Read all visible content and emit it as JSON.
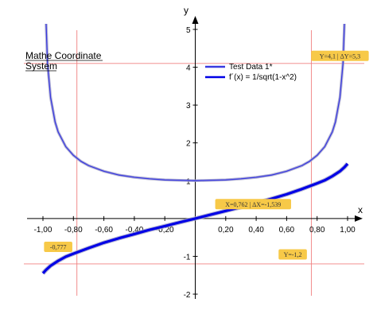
{
  "chart_data": {
    "type": "line",
    "title_lines": [
      "Mathe Coordinate",
      "System"
    ],
    "xlabel": "x",
    "ylabel": "y",
    "xlim": [
      -1.0,
      1.0
    ],
    "ylim": [
      -2,
      5
    ],
    "x_ticks": [
      -1.0,
      -0.8,
      -0.6,
      -0.4,
      -0.2,
      0.2,
      0.4,
      0.6,
      0.8,
      1.0
    ],
    "x_tick_labels": [
      "-1,00",
      "-0,80",
      "-0,60",
      "-0,40",
      "-0,20",
      "0,20",
      "0,40",
      "0,60",
      "0,80",
      "1,00"
    ],
    "y_ticks": [
      -2,
      -1,
      1,
      2,
      3,
      4,
      5
    ],
    "y_tick_labels": [
      "-2",
      "-1",
      "1",
      "2",
      "3",
      "4",
      "5"
    ],
    "grid": false,
    "legend_position": "top-right",
    "series": [
      {
        "name": "Test Data 1*",
        "color": "#3a3ae0",
        "x": [
          -0.985,
          -0.97,
          -0.95,
          -0.92,
          -0.9,
          -0.85,
          -0.8,
          -0.75,
          -0.7,
          -0.6,
          -0.5,
          -0.4,
          -0.3,
          -0.2,
          -0.1,
          0.0,
          0.1,
          0.2,
          0.3,
          0.4,
          0.5,
          0.6,
          0.7,
          0.75,
          0.8,
          0.85,
          0.9,
          0.92,
          0.95,
          0.97,
          0.985
        ],
        "y": [
          5.8,
          4.11,
          3.2,
          2.55,
          2.29,
          1.9,
          1.67,
          1.51,
          1.4,
          1.25,
          1.15,
          1.09,
          1.05,
          1.02,
          1.01,
          1.0,
          1.01,
          1.02,
          1.05,
          1.09,
          1.15,
          1.25,
          1.4,
          1.51,
          1.67,
          1.9,
          2.29,
          2.55,
          3.2,
          4.11,
          5.8
        ]
      },
      {
        "name": "f´(x) = 1/sqrt(1-x^2)",
        "color": "#0000e6",
        "x": [
          -1.0,
          -0.98,
          -0.95,
          -0.9,
          -0.85,
          -0.8,
          -0.7,
          -0.6,
          -0.5,
          -0.4,
          -0.3,
          -0.2,
          -0.1,
          0.0,
          0.1,
          0.2,
          0.3,
          0.4,
          0.5,
          0.6,
          0.7,
          0.8,
          0.85,
          0.9,
          0.95,
          0.98,
          1.0
        ],
        "y": [
          -1.45,
          -1.36,
          -1.25,
          -1.12,
          -1.01,
          -0.93,
          -0.78,
          -0.64,
          -0.52,
          -0.41,
          -0.3,
          -0.2,
          -0.1,
          0.0,
          0.1,
          0.2,
          0.3,
          0.41,
          0.52,
          0.64,
          0.78,
          0.93,
          1.01,
          1.12,
          1.25,
          1.36,
          1.45
        ]
      }
    ],
    "crosshairs": {
      "x": [
        -0.777,
        0.762
      ],
      "y": [
        4.1,
        -1.2
      ]
    },
    "annotations": [
      {
        "text": "Y=4,1 | ΔY=5,3",
        "x": 0.95,
        "y": 4.3
      },
      {
        "text": "X=0,762 | ΔX=-1,539",
        "x": 0.38,
        "y": 0.38
      },
      {
        "text": "-0,777",
        "x": -0.9,
        "y": -0.75
      },
      {
        "text": "Y=-1,2",
        "x": 0.64,
        "y": -0.95
      }
    ],
    "colors": {
      "axis": "#000000",
      "crosshair": "#f08080",
      "annotation_bg": "#f7c948",
      "series_shadow": "#a0a0c8"
    }
  }
}
